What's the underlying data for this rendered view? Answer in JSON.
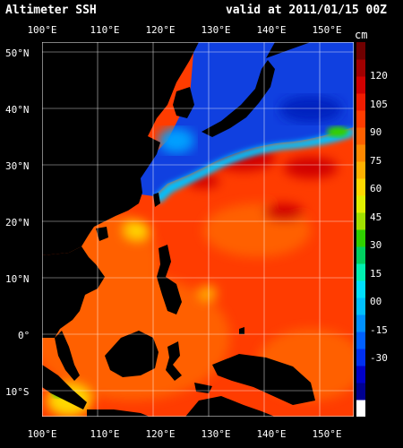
{
  "header": {
    "title": "Altimeter SSH",
    "valid": "valid at 2011/01/15 00Z"
  },
  "colorbar": {
    "unit": "cm",
    "labels": [
      "120",
      "105",
      "90",
      "75",
      "60",
      "45",
      "30",
      "15",
      "00",
      "-15",
      "-30"
    ],
    "colors": [
      "#ffffff",
      "#000090",
      "#0000c8",
      "#0030f0",
      "#0060ff",
      "#0090ff",
      "#00c0ff",
      "#00e0ff",
      "#00f0b0",
      "#00d060",
      "#30d000",
      "#a0e000",
      "#e0f000",
      "#ffd800",
      "#ffb000",
      "#ff8800",
      "#ff6000",
      "#ff3c00",
      "#f01c00",
      "#d00000",
      "#a00000",
      "#700000"
    ]
  },
  "axes": {
    "top_lon": [
      "100°E",
      "110°E",
      "120°E",
      "130°E",
      "140°E",
      "150°E"
    ],
    "bottom_lon": [
      "100°E",
      "110°E",
      "120°E",
      "130°E",
      "140°E",
      "150°E"
    ],
    "lat": [
      "50°N",
      "40°N",
      "30°N",
      "20°N",
      "10°N",
      "0°",
      "10°S"
    ]
  },
  "map": {
    "ocean_colors": {
      "cold_north": "#1040e0",
      "cold_patch": "#0020c0",
      "transition": "#00c0ff",
      "warm_base": "#ff3c00",
      "warm_light": "#ff6000",
      "warm_hot": "#d00000",
      "yellow": "#ffd800",
      "green": "#30d000"
    },
    "land_color": "#000000"
  }
}
